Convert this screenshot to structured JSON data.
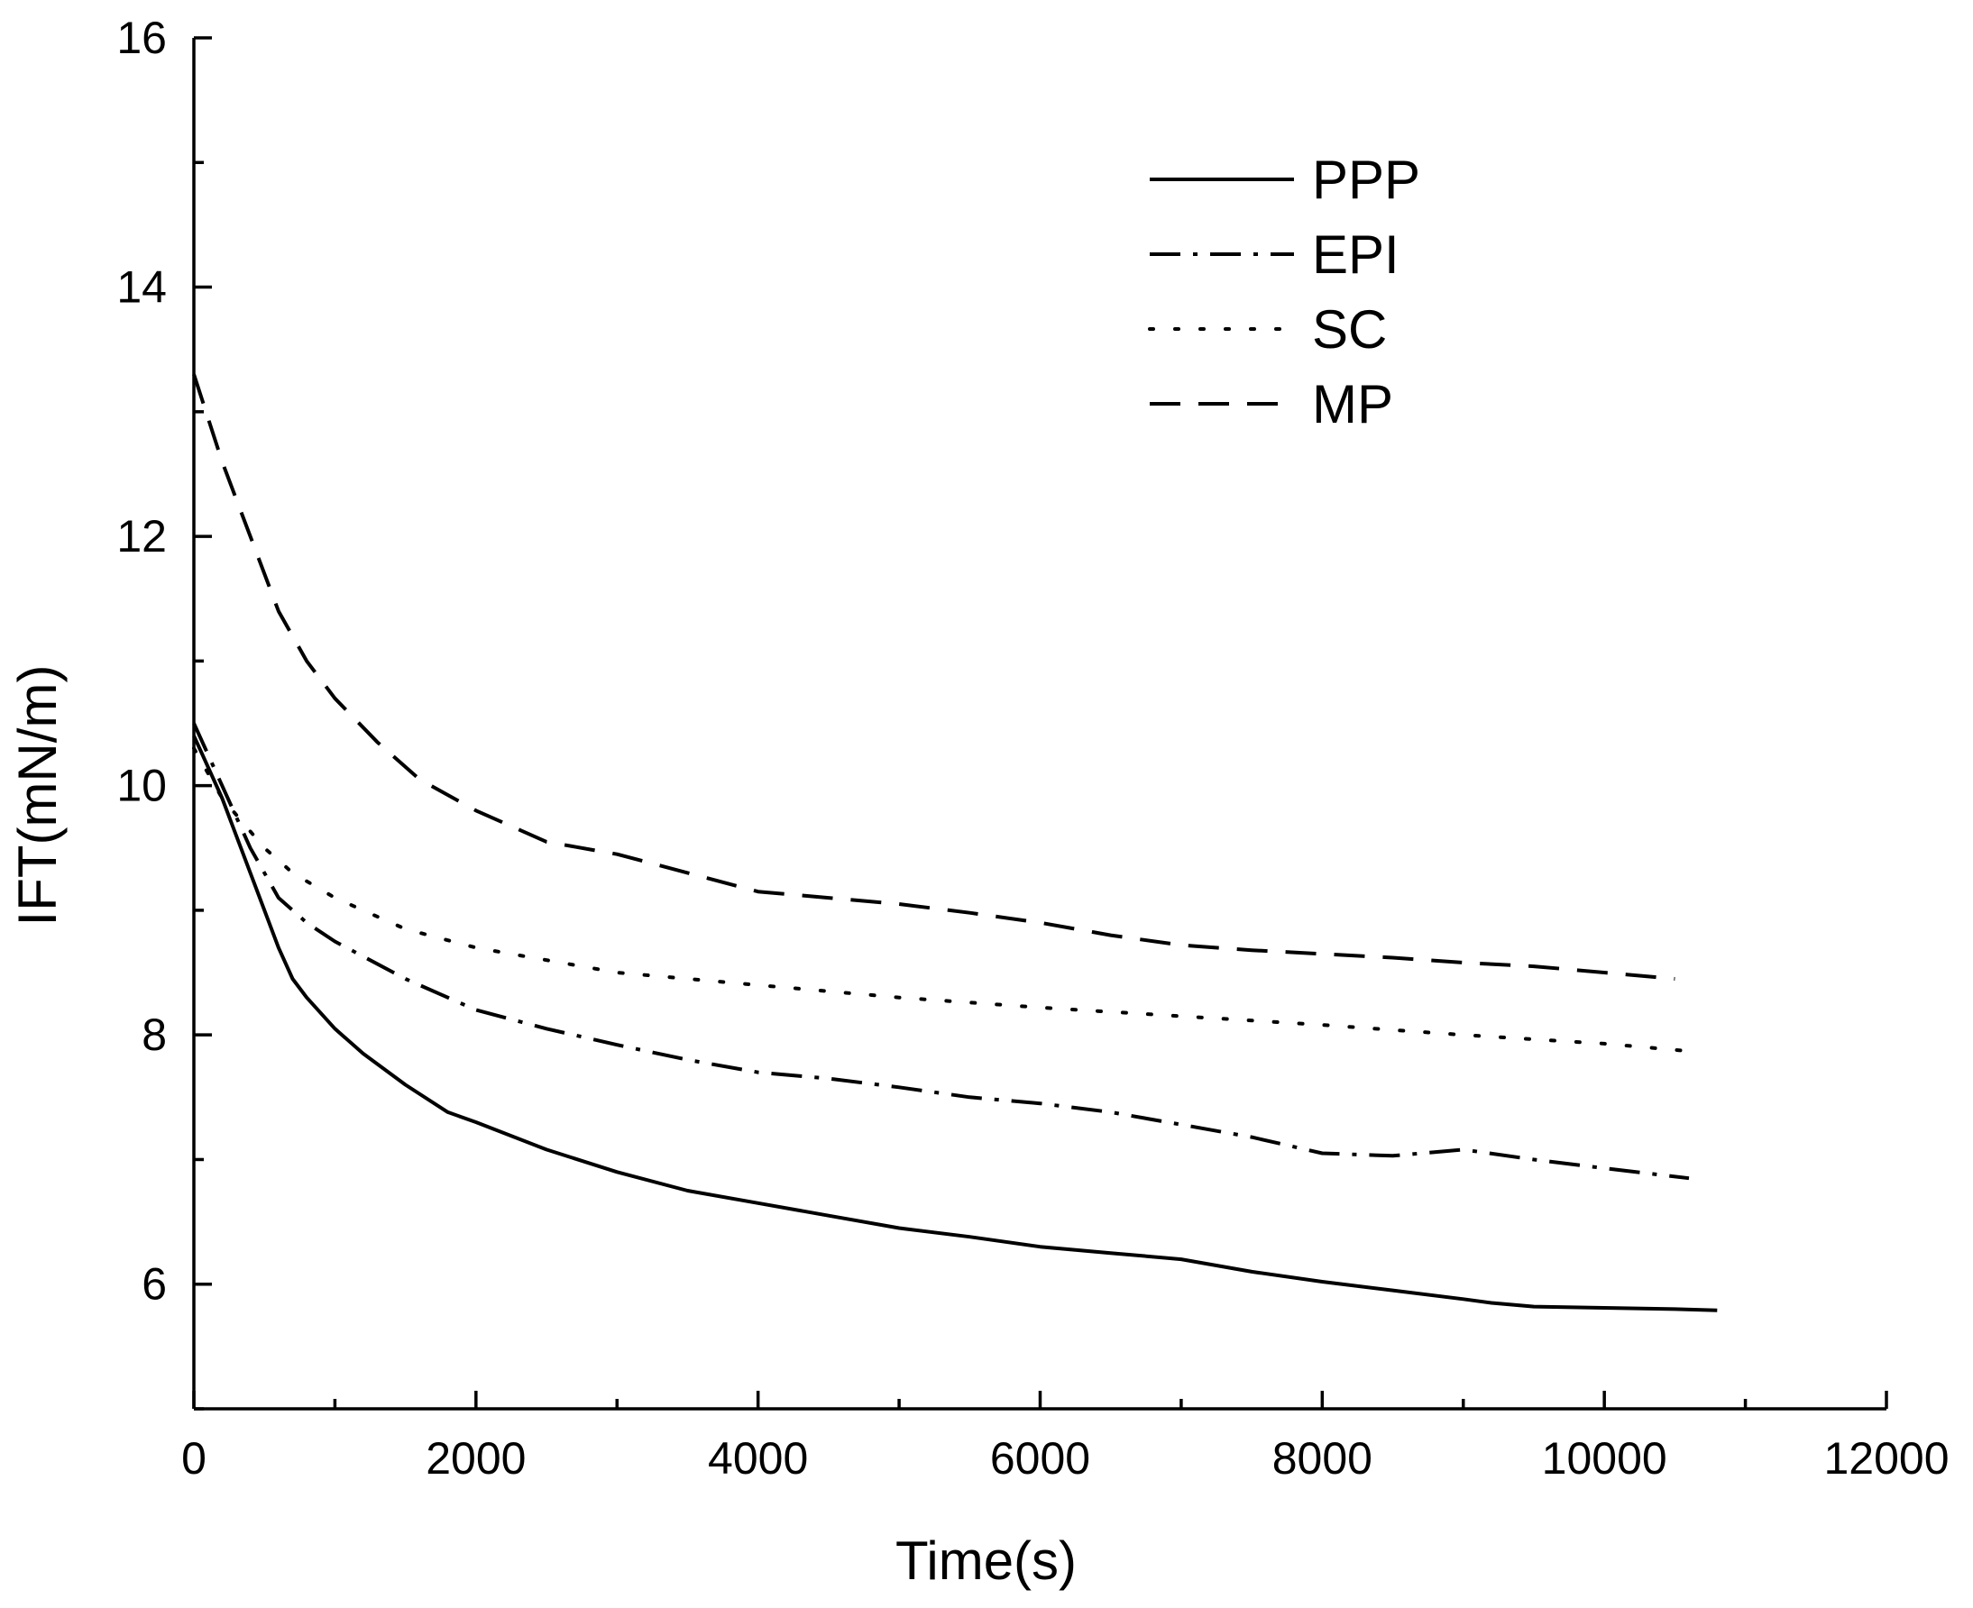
{
  "chart_data": {
    "type": "line",
    "xlabel": "Time(s)",
    "ylabel": "IFT(mN/m)",
    "xlim": [
      0,
      12000
    ],
    "ylim": [
      5,
      16
    ],
    "xticks": [
      0,
      2000,
      4000,
      6000,
      8000,
      10000,
      12000
    ],
    "yticks": [
      6,
      8,
      10,
      12,
      14,
      16
    ],
    "grid": false,
    "legend_position": "top-right",
    "series": [
      {
        "name": "PPP",
        "style": "solid",
        "color": "#000000",
        "x": [
          0,
          200,
          400,
          600,
          700,
          800,
          1000,
          1200,
          1500,
          1800,
          2000,
          2500,
          3000,
          3500,
          4000,
          4500,
          5000,
          5500,
          6000,
          6500,
          7000,
          7500,
          8000,
          8500,
          9000,
          9200,
          9500,
          10000,
          10500,
          10800
        ],
        "y": [
          10.4,
          9.9,
          9.3,
          8.7,
          8.45,
          8.3,
          8.05,
          7.85,
          7.6,
          7.38,
          7.3,
          7.08,
          6.9,
          6.75,
          6.65,
          6.55,
          6.45,
          6.38,
          6.3,
          6.25,
          6.2,
          6.1,
          6.02,
          5.95,
          5.88,
          5.85,
          5.82,
          5.81,
          5.8,
          5.79
        ]
      },
      {
        "name": "EPI",
        "style": "dashdot",
        "color": "#000000",
        "x": [
          0,
          200,
          400,
          600,
          800,
          1000,
          1500,
          2000,
          2500,
          3000,
          3500,
          4000,
          4500,
          5000,
          5500,
          6000,
          6500,
          7000,
          7500,
          8000,
          8500,
          9000,
          9500,
          10000,
          10600
        ],
        "y": [
          10.5,
          10.0,
          9.5,
          9.1,
          8.9,
          8.75,
          8.45,
          8.2,
          8.05,
          7.92,
          7.8,
          7.7,
          7.65,
          7.58,
          7.5,
          7.45,
          7.38,
          7.28,
          7.18,
          7.05,
          7.03,
          7.08,
          7.0,
          6.93,
          6.85
        ]
      },
      {
        "name": "SC",
        "style": "dotted",
        "color": "#000000",
        "x": [
          0,
          200,
          500,
          700,
          1000,
          1500,
          2000,
          3000,
          4000,
          5000,
          6000,
          7000,
          8000,
          9000,
          10000,
          10600
        ],
        "y": [
          10.3,
          9.9,
          9.5,
          9.3,
          9.1,
          8.85,
          8.7,
          8.5,
          8.4,
          8.3,
          8.22,
          8.15,
          8.08,
          8.0,
          7.93,
          7.87
        ]
      },
      {
        "name": "MP",
        "style": "dashed",
        "color": "#000000",
        "x": [
          0,
          200,
          400,
          600,
          800,
          1000,
          1300,
          1600,
          2000,
          2500,
          3000,
          3500,
          4000,
          4500,
          5000,
          5500,
          6000,
          6500,
          7000,
          7500,
          8000,
          8500,
          9000,
          9500,
          10000,
          10500
        ],
        "y": [
          13.3,
          12.6,
          12.0,
          11.4,
          11.0,
          10.7,
          10.35,
          10.05,
          9.8,
          9.55,
          9.45,
          9.3,
          9.15,
          9.1,
          9.05,
          8.98,
          8.9,
          8.8,
          8.72,
          8.68,
          8.65,
          8.62,
          8.58,
          8.55,
          8.5,
          8.45
        ]
      }
    ]
  }
}
